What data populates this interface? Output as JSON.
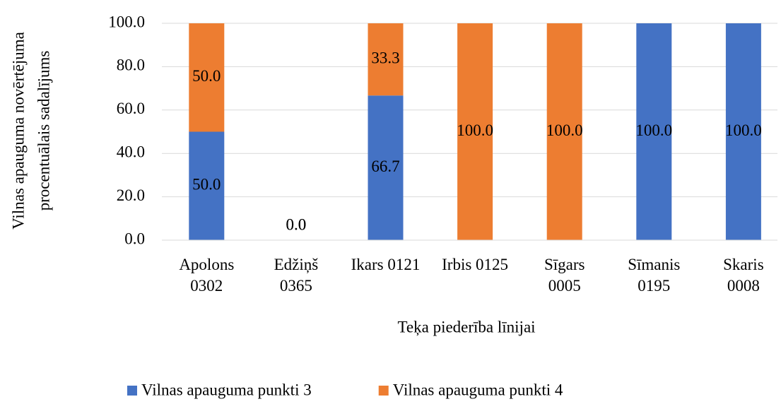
{
  "chart_data": {
    "type": "stacked_bar",
    "x_label": "Teķa piederība līnijai",
    "y_label": [
      "Vilnas apauguma novērtējuma",
      "procentuālais sadalījums"
    ],
    "categories": [
      "Apolons\n0302",
      "Edžiņš\n0365",
      "Ikars 0121",
      "Irbis 0125",
      "Sīgars\n0005",
      "Sīmanis\n0195",
      "Skaris\n0008"
    ],
    "series": [
      {
        "name": "Vilnas apauguma punkti 3",
        "color": "#4472c4",
        "values": [
          50,
          0,
          66.7,
          0,
          0,
          100,
          100
        ],
        "value_labels": [
          "50.0",
          "0.0",
          "66.7",
          null,
          null,
          "100.0",
          "100.0"
        ]
      },
      {
        "name": "Vilnas apauguma punkti 4",
        "color": "#ed7d31",
        "values": [
          50,
          0,
          33.3,
          100,
          100,
          0,
          0
        ],
        "value_labels": [
          "50.0",
          "0.0",
          "33.3",
          "100.0",
          "100.0",
          null,
          null
        ]
      }
    ],
    "ylim": [
      0,
      100
    ],
    "yticks": [
      {
        "value": 0,
        "label": "0.0"
      },
      {
        "value": 20,
        "label": "20.0"
      },
      {
        "value": 40,
        "label": "40.0"
      },
      {
        "value": 60,
        "label": "60.0"
      },
      {
        "value": 80,
        "label": "80.0"
      },
      {
        "value": 100,
        "label": "100.0"
      }
    ],
    "grid": true,
    "legend": "bottom"
  }
}
